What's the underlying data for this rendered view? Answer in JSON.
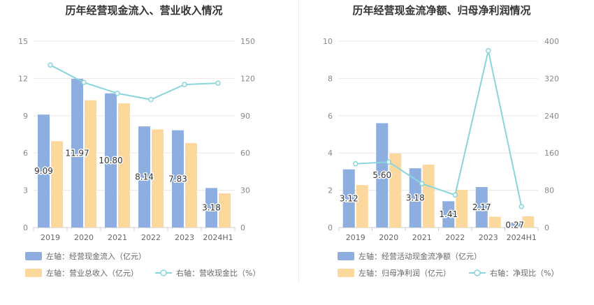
{
  "chart_data": [
    {
      "type": "bar",
      "title": "历年经营现金流入、营业收入情况",
      "categories": [
        "2019",
        "2020",
        "2021",
        "2022",
        "2023",
        "2024H1"
      ],
      "left_axis": {
        "min": 0,
        "max": 15,
        "ticks": [
          "0",
          "3",
          "6",
          "9",
          "12",
          "15"
        ]
      },
      "right_axis": {
        "min": 0,
        "max": 150,
        "ticks": [
          "0",
          "30",
          "60",
          "90",
          "120",
          "150"
        ]
      },
      "series": [
        {
          "name": "左轴：经营现金流入（亿元）",
          "type": "bar",
          "axis": "left",
          "color": "#8eaee0",
          "values": [
            9.09,
            11.97,
            10.8,
            8.14,
            7.83,
            3.18
          ],
          "labels": [
            "9.09",
            "11.97",
            "10.80",
            "8.14",
            "7.83",
            "3.18"
          ]
        },
        {
          "name": "左轴：营业总收入（亿元）",
          "type": "bar",
          "axis": "left",
          "color": "#fdd89c",
          "values": [
            6.95,
            10.25,
            10.0,
            7.9,
            6.8,
            2.75
          ]
        },
        {
          "name": "右轴：营收现金比（%）",
          "type": "line",
          "axis": "right",
          "color": "#88d6dc",
          "values": [
            130.8,
            116.8,
            108.0,
            103.0,
            115.1,
            116.2
          ]
        }
      ]
    },
    {
      "type": "bar",
      "title": "历年经营现金流净额、归母净利润情况",
      "categories": [
        "2019",
        "2020",
        "2021",
        "2022",
        "2023",
        "2024H1"
      ],
      "left_axis": {
        "min": 0,
        "max": 10,
        "ticks": [
          "0",
          "2",
          "4",
          "6",
          "8",
          "10"
        ]
      },
      "right_axis": {
        "min": 0,
        "max": 400,
        "ticks": [
          "0",
          "80",
          "160",
          "240",
          "320",
          "400"
        ]
      },
      "series": [
        {
          "name": "左轴：经营活动现金流净额（亿元）",
          "type": "bar",
          "axis": "left",
          "color": "#8eaee0",
          "values": [
            3.12,
            5.6,
            3.18,
            1.41,
            2.17,
            0.27
          ],
          "labels": [
            "3.12",
            "5.60",
            "3.18",
            "1.41",
            "2.17",
            "0.27"
          ]
        },
        {
          "name": "左轴：归母净利润（亿元）",
          "type": "bar",
          "axis": "left",
          "color": "#fdd89c",
          "values": [
            2.28,
            3.98,
            3.38,
            2.02,
            0.58,
            0.6
          ]
        },
        {
          "name": "右轴：净现比（%）",
          "type": "line",
          "axis": "right",
          "color": "#88d6dc",
          "values": [
            136.8,
            140.7,
            94.1,
            69.8,
            379.5,
            45.0
          ]
        }
      ]
    }
  ]
}
